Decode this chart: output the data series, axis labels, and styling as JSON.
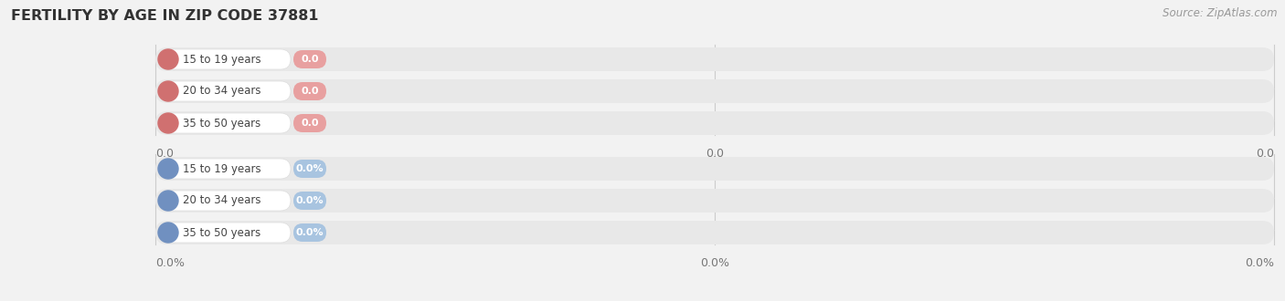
{
  "title": "FERTILITY BY AGE IN ZIP CODE 37881",
  "source": "Source: ZipAtlas.com",
  "background_color": "#f2f2f2",
  "rows_top": [
    {
      "label": "15 to 19 years",
      "value": 0.0,
      "display": "0.0"
    },
    {
      "label": "20 to 34 years",
      "value": 0.0,
      "display": "0.0"
    },
    {
      "label": "35 to 50 years",
      "value": 0.0,
      "display": "0.0"
    }
  ],
  "rows_bottom": [
    {
      "label": "15 to 19 years",
      "value": 0.0,
      "display": "0.0%"
    },
    {
      "label": "20 to 34 years",
      "value": 0.0,
      "display": "0.0%"
    },
    {
      "label": "35 to 50 years",
      "value": 0.0,
      "display": "0.0%"
    }
  ],
  "top_tick_labels": [
    "0.0",
    "0.0",
    "0.0"
  ],
  "bottom_tick_labels": [
    "0.0%",
    "0.0%",
    "0.0%"
  ],
  "top_bar_color": "#e8a0a0",
  "top_circle_color": "#d07070",
  "bottom_bar_color": "#a8c4e0",
  "bottom_circle_color": "#7090c0",
  "bar_track_color": "#e8e8e8",
  "figsize": [
    14.06,
    3.3
  ],
  "dpi": 100
}
